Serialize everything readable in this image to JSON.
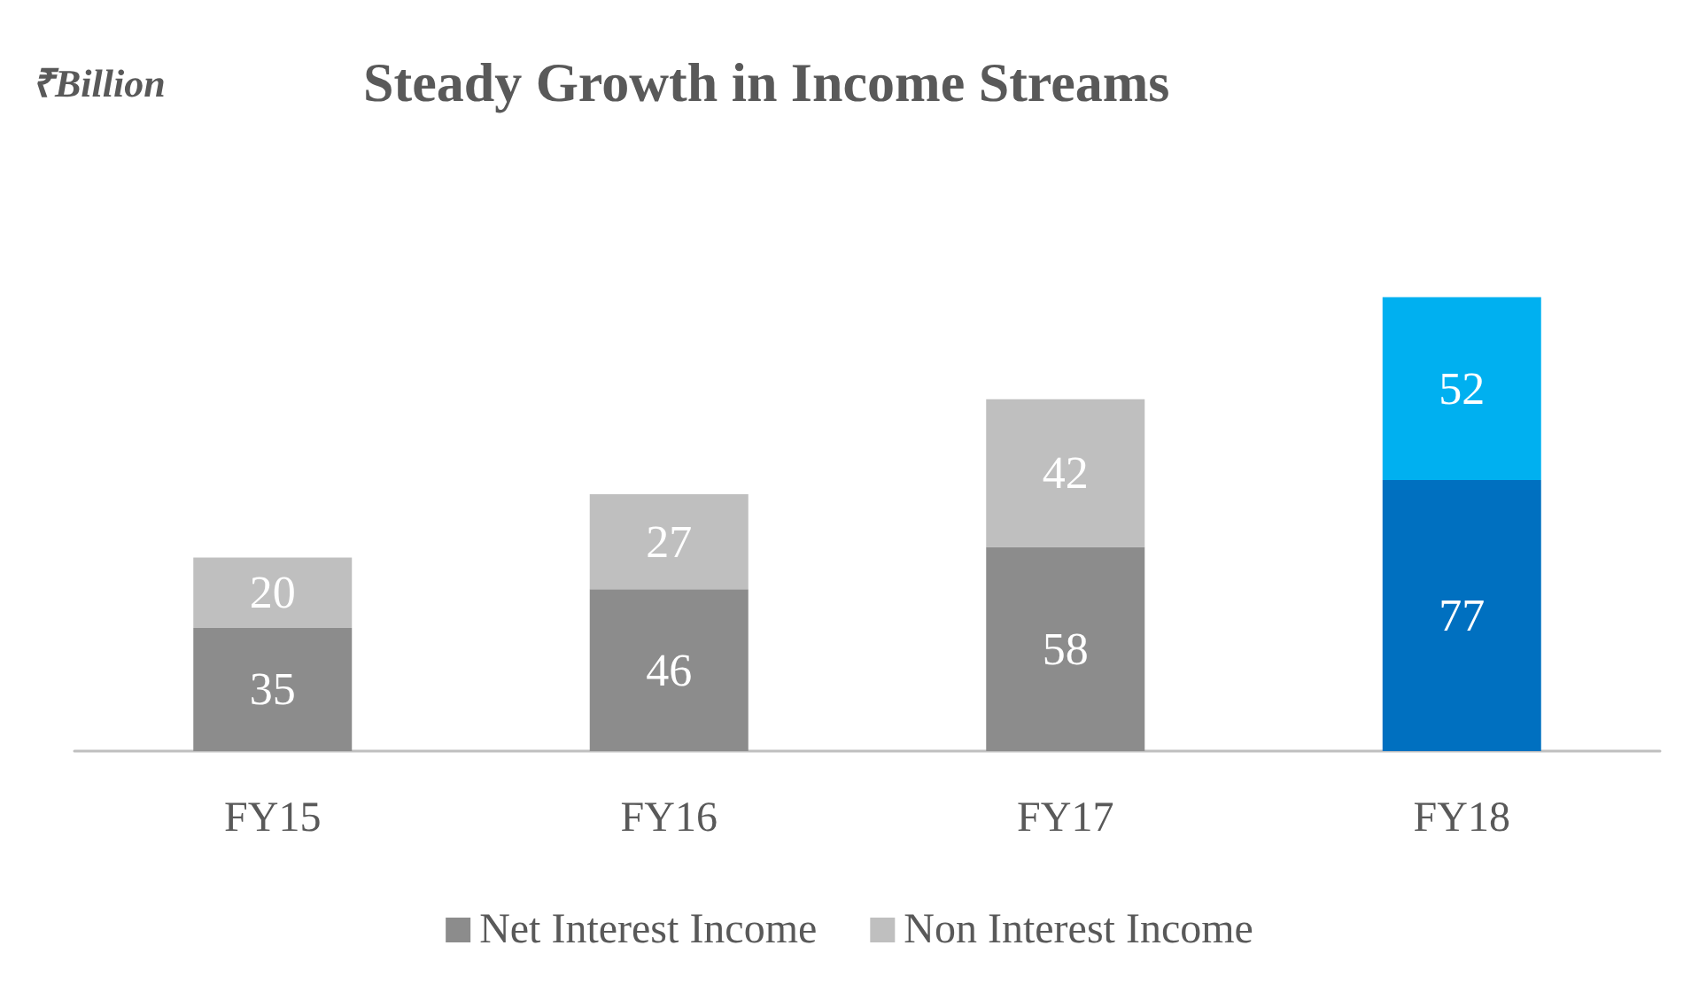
{
  "chart_data": {
    "type": "bar",
    "title": "Steady Growth in Income Streams",
    "annotations": [
      "₹Billion"
    ],
    "categories": [
      "FY15",
      "FY16",
      "FY17",
      "FY18"
    ],
    "series": [
      {
        "name": "Net Interest Income",
        "color": "#8c8c8c",
        "colors": [
          "#8c8c8c",
          "#8c8c8c",
          "#8c8c8c",
          "#0070c0"
        ],
        "values": [
          35,
          46,
          58,
          77
        ]
      },
      {
        "name": "Non Interest Income",
        "color": "#bfbfbf",
        "colors": [
          "#bfbfbf",
          "#bfbfbf",
          "#bfbfbf",
          "#00b0f0"
        ],
        "values": [
          20,
          27,
          42,
          52
        ]
      }
    ],
    "stacked": true,
    "data_labels": true,
    "legend": "bottom"
  }
}
